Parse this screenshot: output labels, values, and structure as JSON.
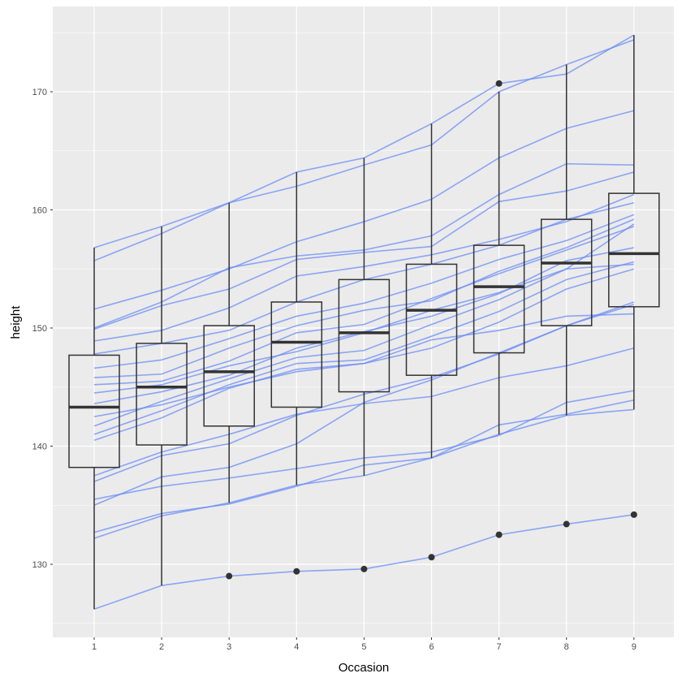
{
  "chart_data": {
    "type": "boxplot",
    "title": "",
    "xlabel": "Occasion",
    "ylabel": "height",
    "ylim": [
      123.5,
      177.5
    ],
    "grid": true,
    "categories": [
      "1",
      "2",
      "3",
      "4",
      "5",
      "6",
      "7",
      "8",
      "9"
    ],
    "yticks": [
      130,
      140,
      150,
      160,
      170
    ],
    "line_color": "#6a8cf5",
    "boxes": [
      {
        "low": 126.2,
        "q1": 138.2,
        "median": 143.3,
        "q3": 147.7,
        "high": 156.8,
        "outliers": []
      },
      {
        "low": 128.2,
        "q1": 140.1,
        "median": 145.0,
        "q3": 148.7,
        "high": 158.6,
        "outliers": []
      },
      {
        "low": 135.2,
        "q1": 141.7,
        "median": 146.3,
        "q3": 150.2,
        "high": 160.6,
        "outliers": [
          129.0
        ]
      },
      {
        "low": 136.7,
        "q1": 143.3,
        "median": 148.8,
        "q3": 152.2,
        "high": 163.2,
        "outliers": [
          129.4
        ]
      },
      {
        "low": 137.5,
        "q1": 144.6,
        "median": 149.6,
        "q3": 154.1,
        "high": 164.4,
        "outliers": [
          129.6
        ]
      },
      {
        "low": 139.0,
        "q1": 146.0,
        "median": 151.5,
        "q3": 155.4,
        "high": 167.3,
        "outliers": [
          130.6
        ]
      },
      {
        "low": 141.0,
        "q1": 147.9,
        "median": 153.5,
        "q3": 157.0,
        "high": 170.0,
        "outliers": [
          132.5,
          170.7
        ]
      },
      {
        "low": 142.6,
        "q1": 150.2,
        "median": 155.5,
        "q3": 159.2,
        "high": 172.3,
        "outliers": [
          133.4
        ]
      },
      {
        "low": 143.1,
        "q1": 151.8,
        "median": 156.3,
        "q3": 161.4,
        "high": 174.8,
        "outliers": [
          134.2
        ]
      }
    ],
    "series": [
      [
        126.2,
        128.2,
        129.0,
        129.4,
        129.6,
        130.6,
        132.5,
        133.4,
        134.2
      ],
      [
        132.2,
        134.1,
        135.2,
        136.7,
        137.5,
        139.0,
        141.0,
        142.6,
        143.1
      ],
      [
        132.7,
        134.3,
        135.1,
        136.6,
        138.4,
        139.0,
        141.8,
        142.7,
        143.9
      ],
      [
        135.0,
        137.4,
        138.2,
        140.2,
        143.7,
        145.6,
        147.9,
        150.2,
        152.2
      ],
      [
        135.5,
        136.6,
        137.3,
        138.1,
        139.0,
        139.5,
        140.9,
        143.7,
        144.7
      ],
      [
        137.0,
        139.2,
        140.2,
        142.6,
        144.4,
        145.8,
        147.8,
        150.2,
        152.0
      ],
      [
        137.5,
        139.5,
        141.0,
        142.7,
        143.6,
        144.2,
        145.8,
        146.8,
        148.3
      ],
      [
        140.5,
        142.4,
        144.9,
        146.5,
        147.0,
        148.3,
        150.5,
        153.3,
        155.0
      ],
      [
        141.0,
        143.0,
        145.2,
        147.0,
        147.3,
        149.3,
        151.4,
        154.1,
        155.6
      ],
      [
        141.7,
        143.8,
        145.7,
        147.5,
        148.1,
        150.3,
        152.4,
        155.0,
        158.8
      ],
      [
        142.5,
        143.5,
        145.0,
        146.3,
        147.0,
        149.0,
        149.8,
        151.0,
        151.2
      ],
      [
        143.6,
        144.6,
        146.0,
        148.3,
        149.7,
        151.0,
        152.9,
        155.7,
        156.8
      ],
      [
        144.5,
        145.2,
        146.8,
        148.0,
        149.6,
        151.5,
        153.0,
        155.0,
        155.4
      ],
      [
        145.2,
        145.5,
        147.2,
        149.6,
        150.3,
        152.5,
        154.6,
        156.6,
        158.6
      ],
      [
        145.8,
        146.1,
        148.3,
        150.2,
        151.5,
        152.3,
        154.8,
        156.8,
        159.2
      ],
      [
        146.6,
        147.3,
        149.1,
        151.0,
        152.1,
        153.8,
        155.8,
        157.4,
        159.6
      ],
      [
        147.8,
        148.7,
        149.8,
        152.2,
        154.1,
        155.4,
        157.0,
        159.2,
        160.6
      ],
      [
        148.9,
        149.8,
        151.7,
        154.4,
        155.2,
        156.2,
        157.5,
        159.0,
        161.3
      ],
      [
        149.9,
        151.9,
        153.3,
        155.8,
        156.4,
        156.9,
        160.7,
        161.6,
        163.2
      ],
      [
        150.0,
        152.2,
        155.1,
        156.1,
        156.6,
        157.8,
        161.3,
        163.9,
        163.8
      ],
      [
        151.6,
        153.2,
        155.0,
        157.3,
        159.0,
        160.9,
        164.4,
        166.9,
        168.4
      ],
      [
        155.7,
        158.0,
        160.6,
        162.0,
        163.8,
        165.5,
        170.0,
        172.3,
        174.4
      ],
      [
        156.8,
        158.6,
        160.6,
        163.2,
        164.4,
        167.3,
        170.7,
        171.5,
        174.8
      ]
    ]
  }
}
